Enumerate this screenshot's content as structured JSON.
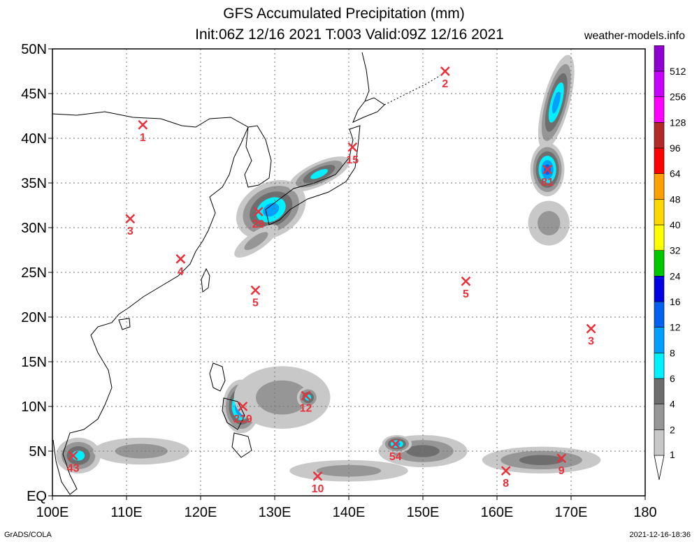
{
  "header": {
    "title_line1": "GFS Accumulated Precipitation (mm)",
    "title_line2": "Init:06Z 12/16 2021 T:003 Valid:09Z 12/16 2021",
    "website": "weather-models.info"
  },
  "footer": {
    "software": "GrADS/COLA",
    "timestamp": "2021-12-16-18:36"
  },
  "map": {
    "lat_range": [
      0,
      50
    ],
    "lon_range": [
      100,
      180
    ],
    "lat_labels": [
      "EQ",
      "5N",
      "10N",
      "15N",
      "20N",
      "25N",
      "30N",
      "35N",
      "40N",
      "45N",
      "50N"
    ],
    "lon_labels": [
      "100E",
      "110E",
      "120E",
      "130E",
      "140E",
      "150E",
      "160E",
      "170E",
      "180"
    ],
    "grid": true
  },
  "colorbar": {
    "levels": [
      "1",
      "2",
      "4",
      "6",
      "8",
      "12",
      "16",
      "24",
      "32",
      "40",
      "48",
      "64",
      "96",
      "128",
      "256",
      "512"
    ],
    "colors": [
      "#c8c8c8",
      "#969696",
      "#6e6e6e",
      "#00f0ff",
      "#00a0ff",
      "#0060f0",
      "#0000e0",
      "#00c800",
      "#ffff00",
      "#ffd700",
      "#ffa000",
      "#ff0000",
      "#b42828",
      "#ff00ff",
      "#c800ff",
      "#9000d0",
      "#6000a0"
    ]
  },
  "markers": [
    {
      "lon": 112.2,
      "lat": 41.5,
      "value": "1"
    },
    {
      "lon": 153.0,
      "lat": 47.5,
      "value": "2"
    },
    {
      "lon": 110.5,
      "lat": 31.0,
      "value": "3"
    },
    {
      "lon": 117.3,
      "lat": 26.5,
      "value": "4"
    },
    {
      "lon": 127.4,
      "lat": 23.0,
      "value": "5"
    },
    {
      "lon": 140.5,
      "lat": 39.0,
      "value": "15"
    },
    {
      "lon": 127.8,
      "lat": 31.8,
      "value": "29"
    },
    {
      "lon": 155.8,
      "lat": 24.0,
      "value": "5"
    },
    {
      "lon": 166.8,
      "lat": 36.5,
      "value": "81"
    },
    {
      "lon": 172.7,
      "lat": 18.7,
      "value": "3"
    },
    {
      "lon": 125.7,
      "lat": 10.0,
      "value": "219"
    },
    {
      "lon": 134.2,
      "lat": 11.2,
      "value": "12"
    },
    {
      "lon": 102.8,
      "lat": 4.5,
      "value": "43"
    },
    {
      "lon": 146.3,
      "lat": 5.8,
      "value": "54"
    },
    {
      "lon": 135.8,
      "lat": 2.2,
      "value": "10"
    },
    {
      "lon": 161.2,
      "lat": 2.8,
      "value": "8"
    },
    {
      "lon": 168.7,
      "lat": 4.2,
      "value": "9"
    }
  ],
  "precip_areas": [
    {
      "lon": 129.5,
      "lat": 32.0,
      "rx": 5.0,
      "ry": 3.0,
      "rot": -30,
      "level": 4
    },
    {
      "lon": 136.0,
      "lat": 36.0,
      "rx": 4.5,
      "ry": 1.3,
      "rot": -25,
      "level": 3
    },
    {
      "lon": 127.5,
      "lat": 28.5,
      "rx": 3.5,
      "ry": 1.0,
      "rot": -35,
      "level": 1
    },
    {
      "lon": 168.0,
      "lat": 44.0,
      "rx": 1.8,
      "ry": 5.5,
      "rot": 15,
      "level": 4
    },
    {
      "lon": 166.8,
      "lat": 36.5,
      "rx": 2.3,
      "ry": 3.0,
      "rot": 0,
      "level": 5
    },
    {
      "lon": 167.0,
      "lat": 30.5,
      "rx": 2.8,
      "ry": 2.5,
      "rot": 0,
      "level": 1
    },
    {
      "lon": 125.5,
      "lat": 10.0,
      "rx": 2.5,
      "ry": 3.0,
      "rot": 0,
      "level": 5
    },
    {
      "lon": 131.0,
      "lat": 11.0,
      "rx": 6.5,
      "ry": 3.5,
      "rot": 0,
      "level": 1
    },
    {
      "lon": 134.5,
      "lat": 11.0,
      "rx": 1.5,
      "ry": 1.2,
      "rot": 0,
      "level": 3
    },
    {
      "lon": 150.0,
      "lat": 5.0,
      "rx": 6.0,
      "ry": 1.8,
      "rot": 0,
      "level": 2
    },
    {
      "lon": 146.5,
      "lat": 5.8,
      "rx": 2.0,
      "ry": 1.0,
      "rot": 0,
      "level": 4
    },
    {
      "lon": 166.0,
      "lat": 4.0,
      "rx": 8.0,
      "ry": 1.5,
      "rot": 0,
      "level": 2
    },
    {
      "lon": 103.5,
      "lat": 4.5,
      "rx": 3.0,
      "ry": 2.0,
      "rot": 0,
      "level": 3
    },
    {
      "lon": 112.0,
      "lat": 5.0,
      "rx": 6.5,
      "ry": 1.5,
      "rot": 0,
      "level": 1
    },
    {
      "lon": 140.0,
      "lat": 2.8,
      "rx": 8.0,
      "ry": 1.2,
      "rot": 0,
      "level": 1
    }
  ]
}
